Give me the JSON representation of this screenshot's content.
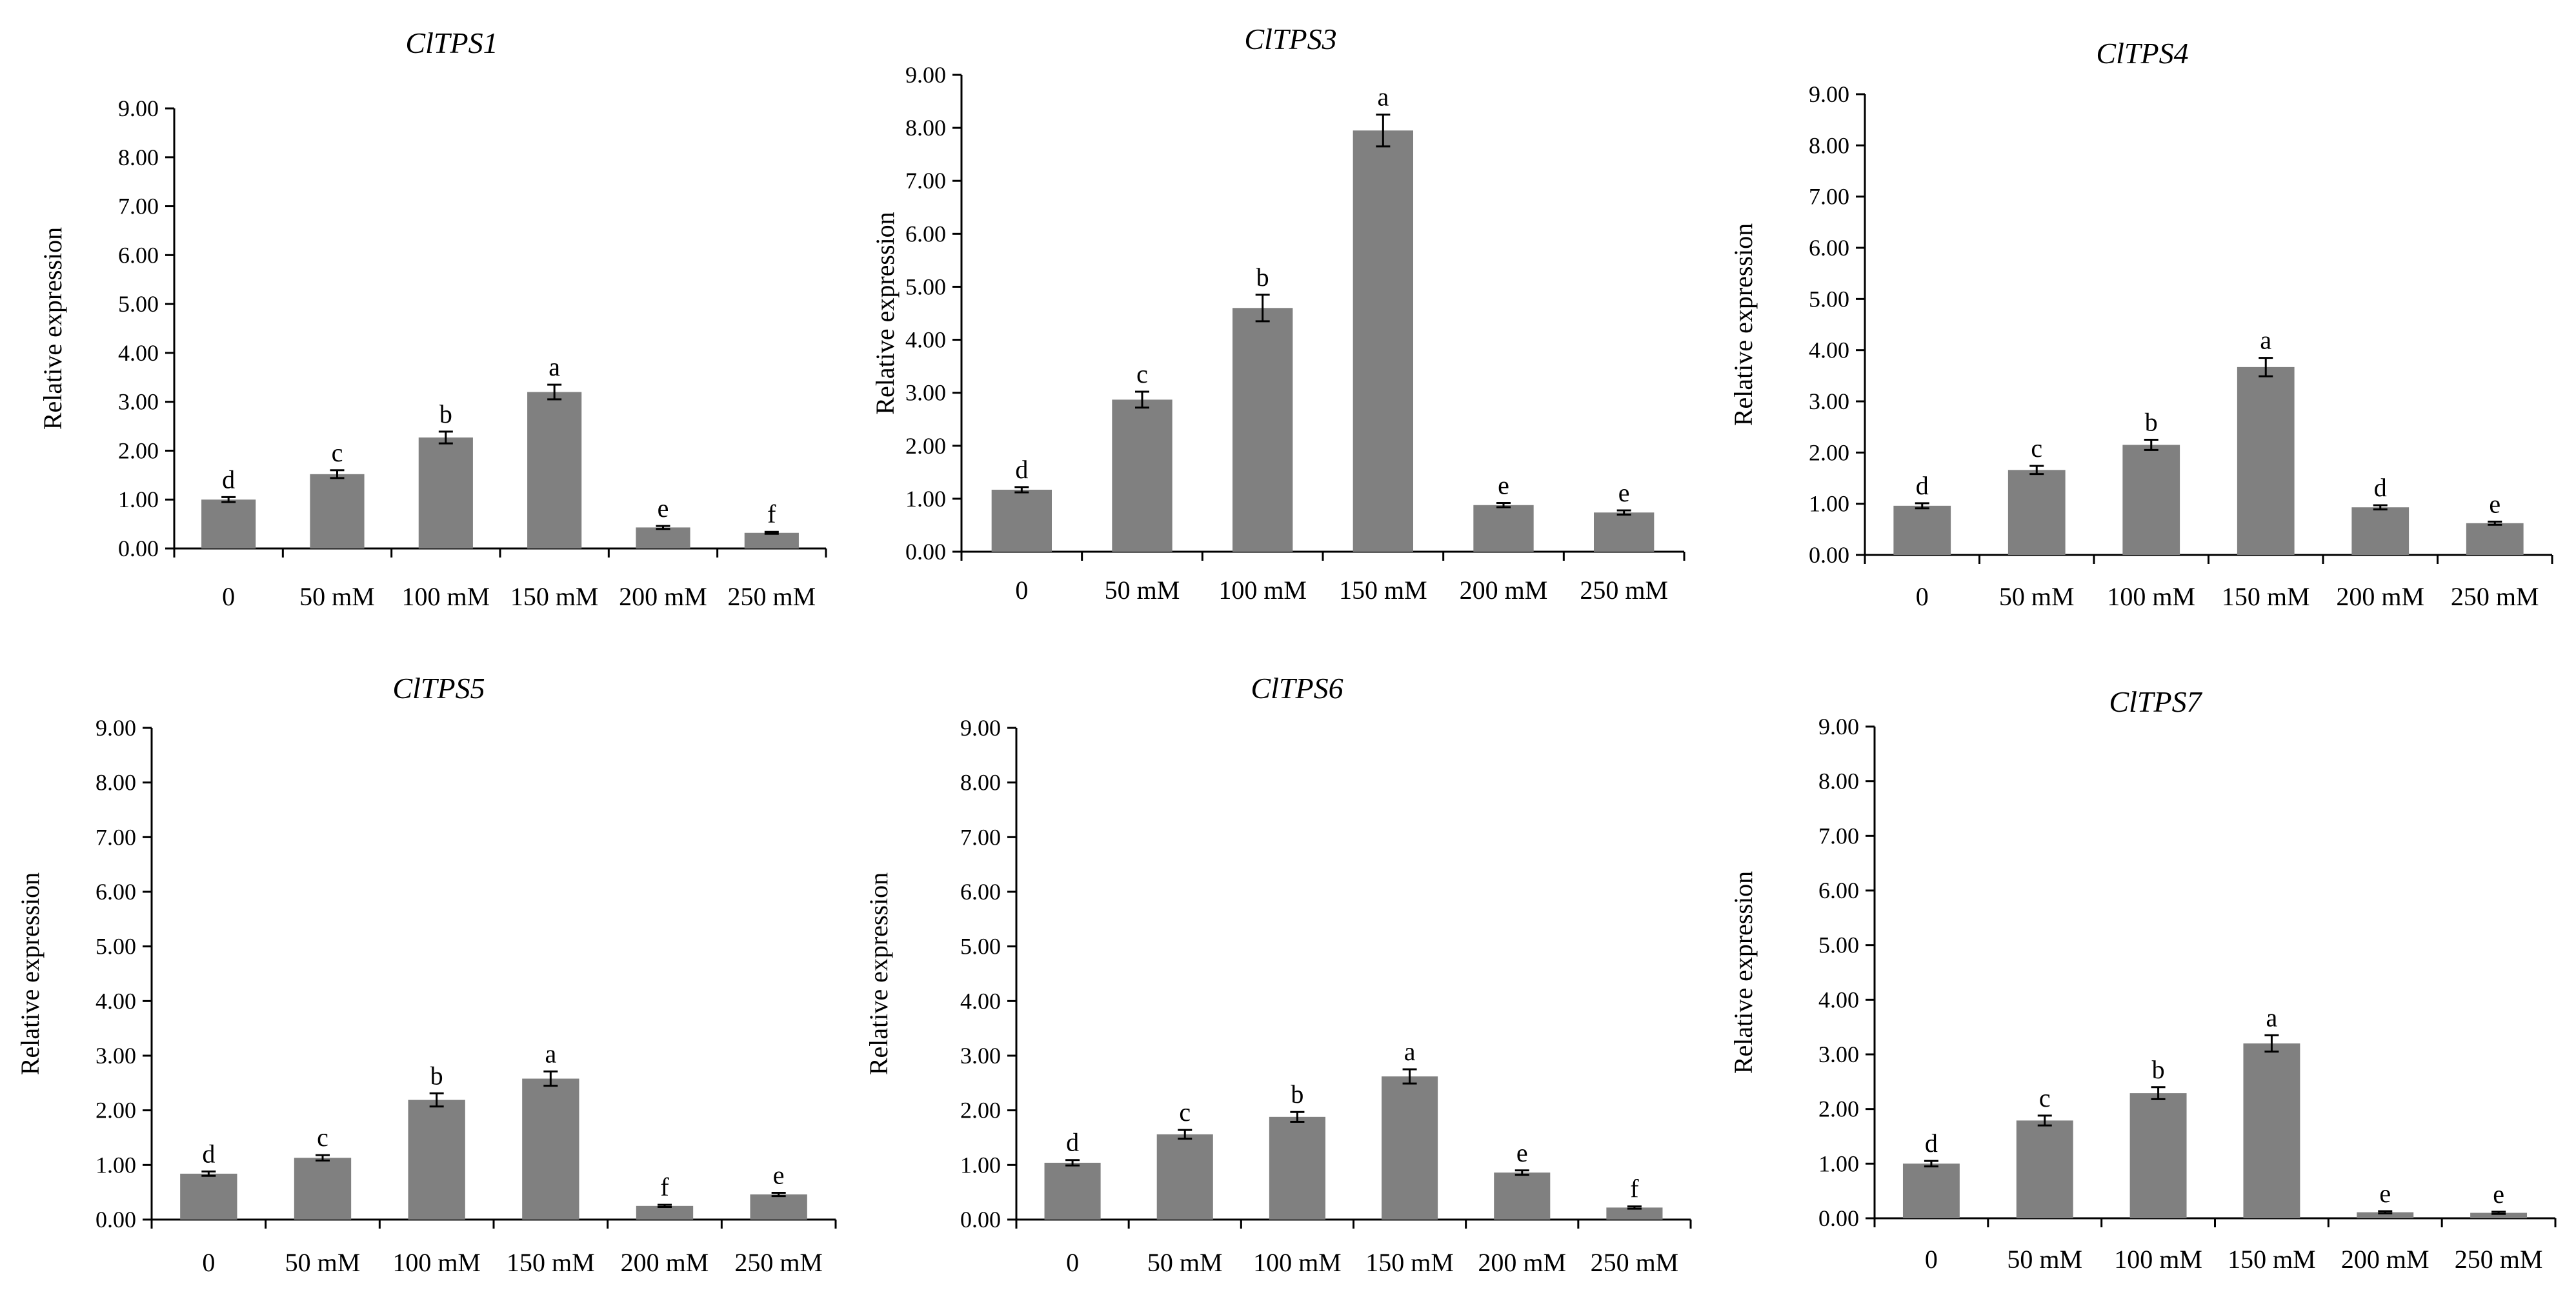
{
  "chart_data": [
    {
      "type": "bar",
      "title": "ClTPS1",
      "ylabel": "Relative expression",
      "xlabel": "",
      "ylim": [
        0,
        9
      ],
      "yticks": [
        "0.00",
        "1.00",
        "2.00",
        "3.00",
        "4.00",
        "5.00",
        "6.00",
        "7.00",
        "8.00",
        "9.00"
      ],
      "categories": [
        "0",
        "50 mM",
        "100 mM",
        "150 mM",
        "200 mM",
        "250 mM"
      ],
      "values": [
        1.0,
        1.52,
        2.27,
        3.2,
        0.43,
        0.32
      ],
      "errors": [
        0.05,
        0.08,
        0.12,
        0.15,
        0.03,
        0.02
      ],
      "letters": [
        "d",
        "c",
        "b",
        "a",
        "e",
        "f"
      ],
      "colors": {
        "bar": "#808080",
        "axis": "#000000"
      }
    },
    {
      "type": "bar",
      "title": "ClTPS3",
      "ylabel": "Relative expression",
      "xlabel": "",
      "ylim": [
        0,
        9
      ],
      "yticks": [
        "0.00",
        "1.00",
        "2.00",
        "3.00",
        "4.00",
        "5.00",
        "6.00",
        "7.00",
        "8.00",
        "9.00"
      ],
      "categories": [
        "0",
        "50 mM",
        "100 mM",
        "150 mM",
        "200 mM",
        "250 mM"
      ],
      "values": [
        1.17,
        2.87,
        4.6,
        7.95,
        0.88,
        0.74
      ],
      "errors": [
        0.05,
        0.15,
        0.25,
        0.3,
        0.04,
        0.04
      ],
      "letters": [
        "d",
        "c",
        "b",
        "a",
        "e",
        "e"
      ],
      "colors": {
        "bar": "#808080",
        "axis": "#000000"
      }
    },
    {
      "type": "bar",
      "title": "ClTPS4",
      "ylabel": "Relative expression",
      "xlabel": "",
      "ylim": [
        0,
        9
      ],
      "yticks": [
        "0.00",
        "1.00",
        "2.00",
        "3.00",
        "4.00",
        "5.00",
        "6.00",
        "7.00",
        "8.00",
        "9.00"
      ],
      "categories": [
        "0",
        "50 mM",
        "100 mM",
        "150 mM",
        "200 mM",
        "250 mM"
      ],
      "values": [
        0.96,
        1.66,
        2.15,
        3.67,
        0.93,
        0.62
      ],
      "errors": [
        0.05,
        0.08,
        0.1,
        0.18,
        0.04,
        0.03
      ],
      "letters": [
        "d",
        "c",
        "b",
        "a",
        "d",
        "e"
      ],
      "colors": {
        "bar": "#808080",
        "axis": "#000000"
      }
    },
    {
      "type": "bar",
      "title": "ClTPS5",
      "ylabel": "Relative expression",
      "xlabel": "",
      "ylim": [
        0,
        9
      ],
      "yticks": [
        "0.00",
        "1.00",
        "2.00",
        "3.00",
        "4.00",
        "5.00",
        "6.00",
        "7.00",
        "8.00",
        "9.00"
      ],
      "categories": [
        "0",
        "50 mM",
        "100 mM",
        "150 mM",
        "200 mM",
        "250 mM"
      ],
      "values": [
        0.84,
        1.13,
        2.19,
        2.58,
        0.25,
        0.46
      ],
      "errors": [
        0.04,
        0.05,
        0.12,
        0.13,
        0.02,
        0.03
      ],
      "letters": [
        "d",
        "c",
        "b",
        "a",
        "f",
        "e"
      ],
      "colors": {
        "bar": "#808080",
        "axis": "#000000"
      }
    },
    {
      "type": "bar",
      "title": "ClTPS6",
      "ylabel": "Relative expression",
      "xlabel": "",
      "ylim": [
        0,
        9
      ],
      "yticks": [
        "0.00",
        "1.00",
        "2.00",
        "3.00",
        "4.00",
        "5.00",
        "6.00",
        "7.00",
        "8.00",
        "9.00"
      ],
      "categories": [
        "0",
        "50 mM",
        "100 mM",
        "150 mM",
        "200 mM",
        "250 mM"
      ],
      "values": [
        1.04,
        1.56,
        1.88,
        2.62,
        0.86,
        0.22
      ],
      "errors": [
        0.05,
        0.08,
        0.09,
        0.13,
        0.04,
        0.02
      ],
      "letters": [
        "d",
        "c",
        "b",
        "a",
        "e",
        "f"
      ],
      "colors": {
        "bar": "#808080",
        "axis": "#000000"
      }
    },
    {
      "type": "bar",
      "title": "ClTPS7",
      "ylabel": "Relative expression",
      "xlabel": "",
      "ylim": [
        0,
        9
      ],
      "yticks": [
        "0.00",
        "1.00",
        "2.00",
        "3.00",
        "4.00",
        "5.00",
        "6.00",
        "7.00",
        "8.00",
        "9.00"
      ],
      "categories": [
        "0",
        "50 mM",
        "100 mM",
        "150 mM",
        "200 mM",
        "250 mM"
      ],
      "values": [
        1.0,
        1.79,
        2.29,
        3.2,
        0.11,
        0.1
      ],
      "errors": [
        0.05,
        0.09,
        0.11,
        0.15,
        0.02,
        0.02
      ],
      "letters": [
        "d",
        "c",
        "b",
        "a",
        "e",
        "e"
      ],
      "colors": {
        "bar": "#808080",
        "axis": "#000000"
      }
    }
  ]
}
